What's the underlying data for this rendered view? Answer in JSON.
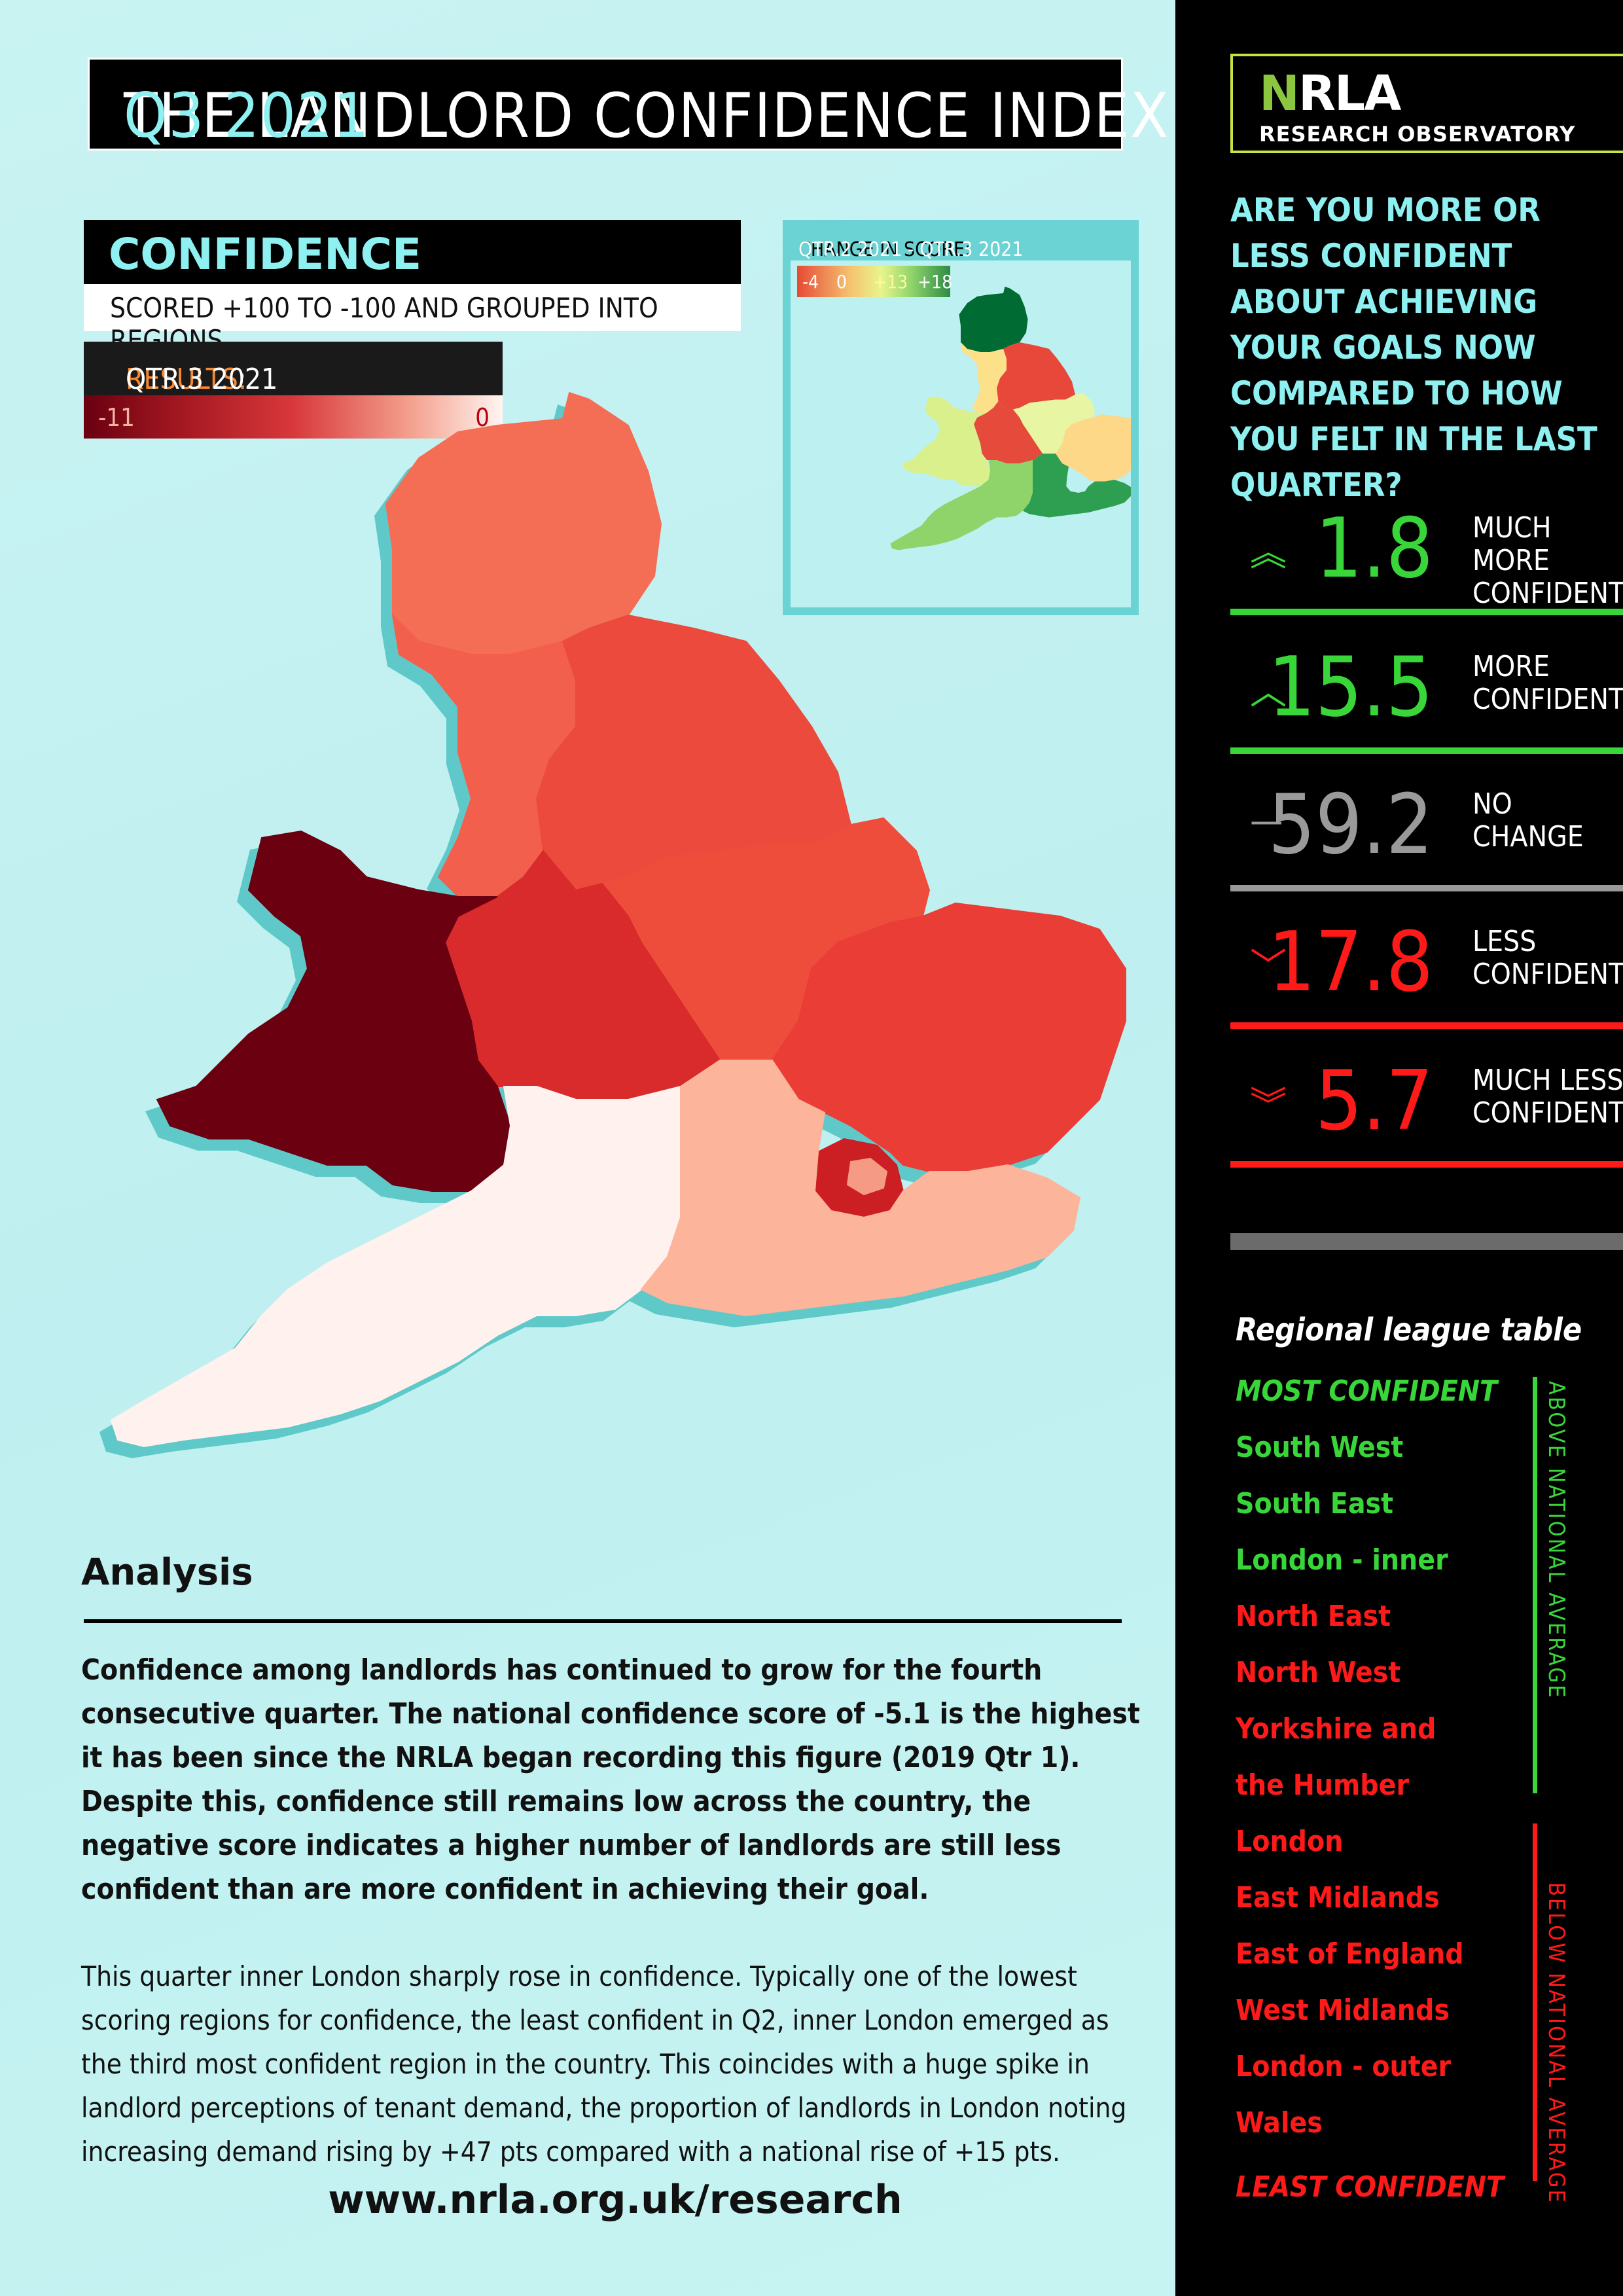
{
  "title": {
    "main": "THE LANDLORD CONFIDENCE INDEX:",
    "highlight": "Q3 2021"
  },
  "legend": {
    "heading": "CONFIDENCE",
    "subheading": "SCORED +100 TO -100 AND GROUPED INTO REGIONS",
    "results_prefix": "RESULTS:",
    "results_period": "QTR.3 2021",
    "scale_min": "-11",
    "scale_max": "0"
  },
  "inset": {
    "title_prefix": "CHANGE IN SCORE:",
    "title_period": "QTR.2 2021 - QTR.3 2021",
    "ticks": [
      "-4",
      "0",
      "+13",
      "+18"
    ],
    "colors": {
      "north_east": "#006b33",
      "north_west": "#fde08a",
      "yorkshire": "#e8483a",
      "east_midlands": "#e8f5a3",
      "west_midlands": "#e64a3a",
      "wales": "#d9f08c",
      "east": "#fdd889",
      "south_west": "#8fd36b",
      "south_east": "#2e9e50"
    }
  },
  "map": {
    "colors": {
      "north_east": "#f46d55",
      "north_west": "#f2604d",
      "yorkshire": "#ec4a3c",
      "east_midlands": "#ee4d3c",
      "west_midlands": "#d92b2b",
      "wales": "#6a0010",
      "east": "#e93d36",
      "london_outer": "#cc1f23",
      "london_inner": "#f59b85",
      "south_west": "#fff2ee",
      "south_east": "#fcb59b",
      "shadow": "#5fc9c9"
    }
  },
  "analysis": {
    "heading": "Analysis",
    "paragraph1": "Confidence among landlords has continued to grow for the fourth consecutive quarter. The national confidence score of -5.1 is the highest it has been since the NRLA began recording this figure (2019 Qtr 1). Despite this, confidence still remains low across the country, the negative score indicates a higher number of landlords are still less confident than are more confident in achieving their goal.",
    "paragraph2": "This quarter inner London sharply rose in confidence. Typically one of the lowest scoring regions for confidence, the least confident in Q2, inner London emerged as the third most confident region in the country. This coincides with a huge spike in landlord perceptions of tenant demand, the proportion of landlords in London noting increasing demand rising by +47 pts compared with a national rise of +15 pts.",
    "url": "www.nrla.org.uk/research"
  },
  "logo": {
    "name_n": "N",
    "name_rest": "RLA",
    "subtitle": "RESEARCH OBSERVATORY"
  },
  "question": "ARE YOU MORE OR LESS CONFIDENT ABOUT ACHIEVING YOUR GOALS NOW COMPARED TO HOW YOU FELT IN THE LAST QUARTER?",
  "stats": [
    {
      "arrow": "︽",
      "value": "1.8",
      "label": "MUCH MORE\nCONFIDENT",
      "color": "#39d63a"
    },
    {
      "arrow": "︿",
      "value": "15.5",
      "label": "MORE\nCONFIDENT",
      "color": "#39d63a"
    },
    {
      "arrow": "—",
      "value": "59.2",
      "label": "NO\nCHANGE",
      "color": "#9a9a9a"
    },
    {
      "arrow": "﹀",
      "value": "17.8",
      "label": "LESS\nCONFIDENT",
      "color": "#ff1a1a"
    },
    {
      "arrow": "︾",
      "value": "5.7",
      "label": "MUCH LESS\nCONFIDENT",
      "color": "#ff1a1a"
    }
  ],
  "league": {
    "heading": "Regional league table",
    "most_label": "MOST CONFIDENT",
    "least_label": "LEAST CONFIDENT",
    "above_label": "ABOVE NATIONAL AVERAGE",
    "below_label": "BELOW NATIONAL AVERAGE",
    "above": [
      "South West",
      "South East",
      "London - inner"
    ],
    "below": [
      "North East",
      "North West",
      "Yorkshire and",
      "the Humber",
      "London",
      "East Midlands",
      "East of England",
      "West Midlands",
      "London - outer",
      "Wales"
    ],
    "green": "#39d63a",
    "red": "#ff1a1a"
  }
}
